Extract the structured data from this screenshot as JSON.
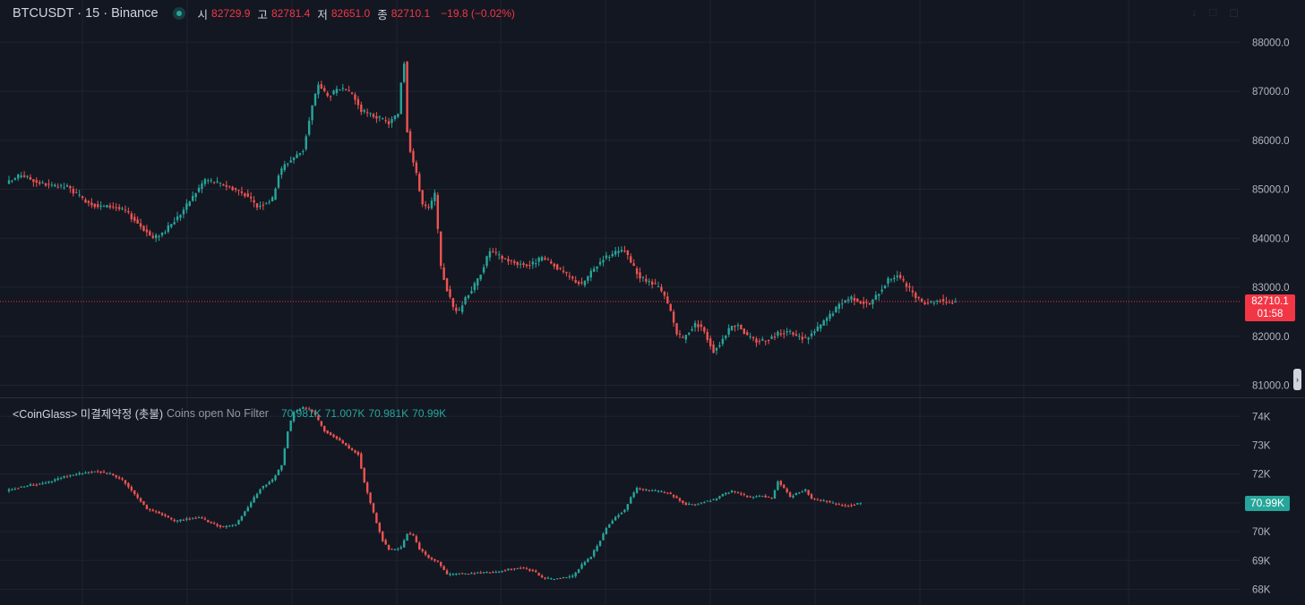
{
  "header": {
    "symbol": "BTCUSDT · 15 · Binance",
    "open_label": "시",
    "open": "82729.9",
    "high_label": "고",
    "high": "82781.4",
    "low_label": "저",
    "low": "82651.0",
    "close_label": "종",
    "close": "82710.1",
    "change": "−19.8 (−0.02%)"
  },
  "price_label": {
    "price": "82710.1",
    "countdown": "01:58"
  },
  "indicator": {
    "name": "<CoinGlass> 미결제약정 (촛불)",
    "params": "Coins open No Filter",
    "values": [
      "70.981K",
      "71.007K",
      "70.981K",
      "70.99K"
    ],
    "last_label": "70.99K"
  },
  "colors": {
    "up": "#26a69a",
    "down": "#ef5350",
    "background": "#131722",
    "grid": "#1f2330",
    "axis_text": "#b2b5be"
  },
  "chart_data": [
    {
      "type": "candlestick",
      "title": "BTCUSDT · 15 · Binance",
      "ylim": [
        80800,
        88400
      ],
      "yticks": [
        "81000.0",
        "82000.0",
        "83000.0",
        "84000.0",
        "85000.0",
        "86000.0",
        "87000.0",
        "88000.0"
      ],
      "last_price": 82710.1,
      "anchors": [
        [
          0,
          85150
        ],
        [
          4,
          85300
        ],
        [
          9,
          85150
        ],
        [
          15,
          85050
        ],
        [
          19,
          85050
        ],
        [
          24,
          84800
        ],
        [
          29,
          84650
        ],
        [
          34,
          84650
        ],
        [
          38,
          84550
        ],
        [
          43,
          84250
        ],
        [
          47,
          84000
        ],
        [
          51,
          84150
        ],
        [
          56,
          84500
        ],
        [
          60,
          84850
        ],
        [
          64,
          85200
        ],
        [
          67,
          85150
        ],
        [
          72,
          85050
        ],
        [
          77,
          84900
        ],
        [
          81,
          84650
        ],
        [
          86,
          84800
        ],
        [
          88,
          85300
        ],
        [
          90,
          85500
        ],
        [
          93,
          85650
        ],
        [
          96,
          85800
        ],
        [
          99,
          86700
        ],
        [
          101,
          87150
        ],
        [
          104,
          86900
        ],
        [
          108,
          87050
        ],
        [
          112,
          86950
        ],
        [
          115,
          86600
        ],
        [
          119,
          86500
        ],
        [
          124,
          86350
        ],
        [
          127,
          86550
        ],
        [
          128,
          87200
        ],
        [
          129,
          87600
        ],
        [
          130,
          86200
        ],
        [
          131,
          85800
        ],
        [
          133,
          85300
        ],
        [
          135,
          84700
        ],
        [
          137,
          84600
        ],
        [
          139,
          84900
        ],
        [
          141,
          83400
        ],
        [
          143,
          82950
        ],
        [
          145,
          82600
        ],
        [
          147,
          82500
        ],
        [
          149,
          82800
        ],
        [
          151,
          82950
        ],
        [
          153,
          83150
        ],
        [
          155,
          83450
        ],
        [
          157,
          83750
        ],
        [
          161,
          83600
        ],
        [
          165,
          83500
        ],
        [
          170,
          83450
        ],
        [
          174,
          83600
        ],
        [
          178,
          83450
        ],
        [
          183,
          83200
        ],
        [
          187,
          83050
        ],
        [
          190,
          83300
        ],
        [
          194,
          83600
        ],
        [
          198,
          83700
        ],
        [
          201,
          83750
        ],
        [
          203,
          83500
        ],
        [
          206,
          83200
        ],
        [
          209,
          83100
        ],
        [
          212,
          83000
        ],
        [
          214,
          82800
        ],
        [
          216,
          82500
        ],
        [
          218,
          82050
        ],
        [
          220,
          81950
        ],
        [
          222,
          82100
        ],
        [
          224,
          82250
        ],
        [
          226,
          82200
        ],
        [
          228,
          81950
        ],
        [
          230,
          81700
        ],
        [
          232,
          81850
        ],
        [
          234,
          82050
        ],
        [
          236,
          82200
        ],
        [
          238,
          82250
        ],
        [
          241,
          82000
        ],
        [
          244,
          81900
        ],
        [
          248,
          81950
        ],
        [
          251,
          82050
        ],
        [
          254,
          82100
        ],
        [
          257,
          82000
        ],
        [
          260,
          81950
        ],
        [
          263,
          82100
        ],
        [
          266,
          82300
        ],
        [
          269,
          82500
        ],
        [
          272,
          82700
        ],
        [
          275,
          82800
        ],
        [
          278,
          82700
        ],
        [
          281,
          82650
        ],
        [
          284,
          82900
        ],
        [
          287,
          83150
        ],
        [
          290,
          83250
        ],
        [
          292,
          83100
        ],
        [
          294,
          82950
        ],
        [
          296,
          82800
        ],
        [
          298,
          82700
        ],
        [
          301,
          82700
        ],
        [
          304,
          82750
        ],
        [
          306,
          82700
        ],
        [
          308,
          82700
        ],
        [
          309,
          82710
        ]
      ]
    },
    {
      "type": "candlestick",
      "title": "<CoinGlass> 미결제약정 (촛불)",
      "ylim": [
        67700,
        74500
      ],
      "yticks": [
        "68K",
        "69K",
        "70K",
        "71K",
        "72K",
        "73K",
        "74K"
      ],
      "last_value": 70990,
      "anchors": [
        [
          0,
          71450
        ],
        [
          6,
          71600
        ],
        [
          12,
          71700
        ],
        [
          18,
          71900
        ],
        [
          24,
          72050
        ],
        [
          29,
          72100
        ],
        [
          33,
          72000
        ],
        [
          37,
          71800
        ],
        [
          41,
          71300
        ],
        [
          45,
          70800
        ],
        [
          50,
          70600
        ],
        [
          54,
          70350
        ],
        [
          58,
          70450
        ],
        [
          62,
          70500
        ],
        [
          66,
          70300
        ],
        [
          70,
          70150
        ],
        [
          74,
          70250
        ],
        [
          78,
          70850
        ],
        [
          82,
          71500
        ],
        [
          86,
          71800
        ],
        [
          89,
          72300
        ],
        [
          91,
          73500
        ],
        [
          93,
          74150
        ],
        [
          96,
          74300
        ],
        [
          99,
          74200
        ],
        [
          103,
          73500
        ],
        [
          107,
          73250
        ],
        [
          111,
          72900
        ],
        [
          114,
          72700
        ],
        [
          116,
          71700
        ],
        [
          118,
          71000
        ],
        [
          120,
          70300
        ],
        [
          122,
          69700
        ],
        [
          124,
          69400
        ],
        [
          126,
          69400
        ],
        [
          128,
          69450
        ],
        [
          130,
          69950
        ],
        [
          132,
          69850
        ],
        [
          134,
          69400
        ],
        [
          137,
          69100
        ],
        [
          140,
          68950
        ],
        [
          143,
          68500
        ],
        [
          147,
          68550
        ],
        [
          151,
          68550
        ],
        [
          155,
          68600
        ],
        [
          159,
          68600
        ],
        [
          163,
          68700
        ],
        [
          167,
          68750
        ],
        [
          171,
          68650
        ],
        [
          174,
          68400
        ],
        [
          177,
          68350
        ],
        [
          180,
          68400
        ],
        [
          184,
          68450
        ],
        [
          187,
          68850
        ],
        [
          190,
          69150
        ],
        [
          193,
          69700
        ],
        [
          195,
          70150
        ],
        [
          197,
          70400
        ],
        [
          199,
          70600
        ],
        [
          201,
          70750
        ],
        [
          203,
          71200
        ],
        [
          205,
          71500
        ],
        [
          208,
          71450
        ],
        [
          212,
          71400
        ],
        [
          215,
          71350
        ],
        [
          218,
          71150
        ],
        [
          221,
          70950
        ],
        [
          224,
          70950
        ],
        [
          227,
          71050
        ],
        [
          230,
          71100
        ],
        [
          233,
          71300
        ],
        [
          236,
          71400
        ],
        [
          239,
          71300
        ],
        [
          242,
          71200
        ],
        [
          246,
          71250
        ],
        [
          249,
          71150
        ],
        [
          251,
          71750
        ],
        [
          253,
          71500
        ],
        [
          255,
          71200
        ],
        [
          257,
          71350
        ],
        [
          260,
          71450
        ],
        [
          262,
          71150
        ],
        [
          264,
          71100
        ],
        [
          267,
          71050
        ],
        [
          270,
          70950
        ],
        [
          273,
          70900
        ],
        [
          276,
          70950
        ],
        [
          278,
          71000
        ]
      ]
    }
  ]
}
